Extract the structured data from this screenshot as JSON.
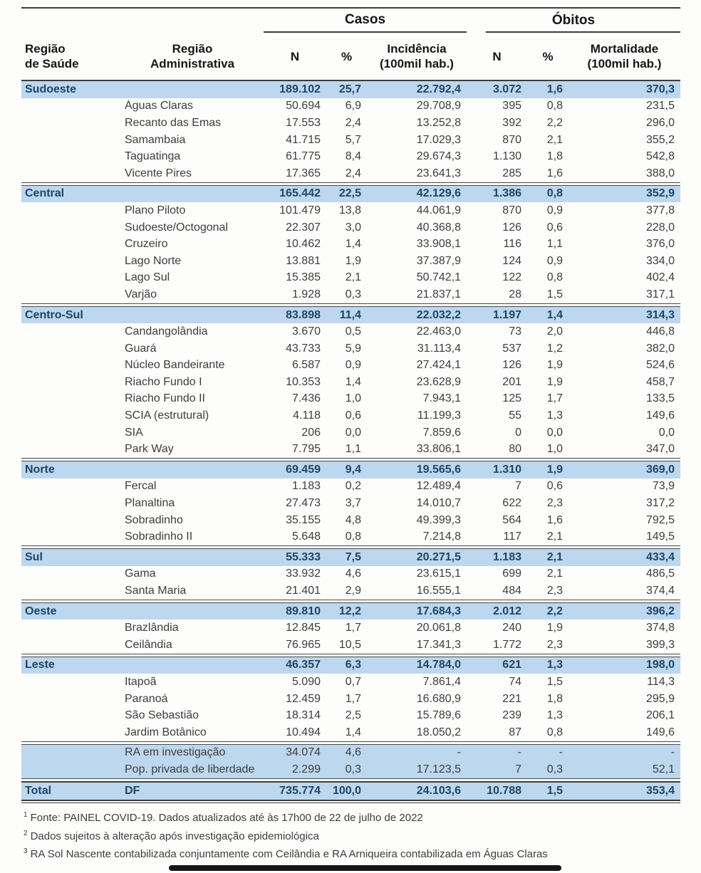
{
  "chart_data": {
    "type": "table",
    "header": {
      "casos": "Casos",
      "obitos": "Óbitos",
      "regiao_saude": "Região\nde Saúde",
      "regiao_administrativa": "Região\nAdministrativa",
      "casos_n": "N",
      "casos_pct": "%",
      "incidencia": "Incidência\n(100mil hab.)",
      "obitos_n": "N",
      "obitos_pct": "%",
      "mortalidade": "Mortalidade\n(100mil hab.)"
    },
    "value_columns": [
      "casos_n",
      "casos_pct",
      "incidencia_100mil",
      "obitos_n",
      "obitos_pct",
      "mortalidade_100mil"
    ],
    "groups": [
      {
        "region": "Sudoeste",
        "values": [
          "189.102",
          "25,7",
          "22.792,4",
          "3.072",
          "1,6",
          "370,3"
        ],
        "rows": [
          {
            "name": "Águas Claras",
            "values": [
              "50.694",
              "6,9",
              "29.708,9",
              "395",
              "0,8",
              "231,5"
            ]
          },
          {
            "name": "Recanto das Emas",
            "values": [
              "17.553",
              "2,4",
              "13.252,8",
              "392",
              "2,2",
              "296,0"
            ]
          },
          {
            "name": "Samambaia",
            "values": [
              "41.715",
              "5,7",
              "17.029,3",
              "870",
              "2,1",
              "355,2"
            ]
          },
          {
            "name": "Taguatinga",
            "values": [
              "61.775",
              "8,4",
              "29.674,3",
              "1.130",
              "1,8",
              "542,8"
            ]
          },
          {
            "name": "Vicente Pires",
            "values": [
              "17.365",
              "2,4",
              "23.641,3",
              "285",
              "1,6",
              "388,0"
            ]
          }
        ]
      },
      {
        "region": "Central",
        "values": [
          "165.442",
          "22,5",
          "42.129,6",
          "1.386",
          "0,8",
          "352,9"
        ],
        "rows": [
          {
            "name": "Plano Piloto",
            "values": [
              "101.479",
              "13,8",
              "44.061,9",
              "870",
              "0,9",
              "377,8"
            ]
          },
          {
            "name": "Sudoeste/Octogonal",
            "values": [
              "22.307",
              "3,0",
              "40.368,8",
              "126",
              "0,6",
              "228,0"
            ]
          },
          {
            "name": "Cruzeiro",
            "values": [
              "10.462",
              "1,4",
              "33.908,1",
              "116",
              "1,1",
              "376,0"
            ]
          },
          {
            "name": "Lago Norte",
            "values": [
              "13.881",
              "1,9",
              "37.387,9",
              "124",
              "0,9",
              "334,0"
            ]
          },
          {
            "name": "Lago Sul",
            "values": [
              "15.385",
              "2,1",
              "50.742,1",
              "122",
              "0,8",
              "402,4"
            ]
          },
          {
            "name": "Varjão",
            "values": [
              "1.928",
              "0,3",
              "21.837,1",
              "28",
              "1,5",
              "317,1"
            ]
          }
        ]
      },
      {
        "region": "Centro-Sul",
        "values": [
          "83.898",
          "11,4",
          "22.032,2",
          "1.197",
          "1,4",
          "314,3"
        ],
        "rows": [
          {
            "name": "Candangolândia",
            "values": [
              "3.670",
              "0,5",
              "22.463,0",
              "73",
              "2,0",
              "446,8"
            ]
          },
          {
            "name": "Guará",
            "values": [
              "43.733",
              "5,9",
              "31.113,4",
              "537",
              "1,2",
              "382,0"
            ]
          },
          {
            "name": "Núcleo Bandeirante",
            "values": [
              "6.587",
              "0,9",
              "27.424,1",
              "126",
              "1,9",
              "524,6"
            ]
          },
          {
            "name": "Riacho Fundo I",
            "values": [
              "10.353",
              "1,4",
              "23.628,9",
              "201",
              "1,9",
              "458,7"
            ]
          },
          {
            "name": "Riacho Fundo II",
            "values": [
              "7.436",
              "1,0",
              "7.943,1",
              "125",
              "1,7",
              "133,5"
            ]
          },
          {
            "name": "SCIA (estrutural)",
            "values": [
              "4.118",
              "0,6",
              "11.199,3",
              "55",
              "1,3",
              "149,6"
            ]
          },
          {
            "name": "SIA",
            "values": [
              "206",
              "0,0",
              "7.859,6",
              "0",
              "0,0",
              "0,0"
            ]
          },
          {
            "name": "Park Way",
            "values": [
              "7.795",
              "1,1",
              "33.806,1",
              "80",
              "1,0",
              "347,0"
            ]
          }
        ]
      },
      {
        "region": "Norte",
        "values": [
          "69.459",
          "9,4",
          "19.565,6",
          "1.310",
          "1,9",
          "369,0"
        ],
        "rows": [
          {
            "name": "Fercal",
            "values": [
              "1.183",
              "0,2",
              "12.489,4",
              "7",
              "0,6",
              "73,9"
            ]
          },
          {
            "name": "Planaltina",
            "values": [
              "27.473",
              "3,7",
              "14.010,7",
              "622",
              "2,3",
              "317,2"
            ]
          },
          {
            "name": "Sobradinho",
            "values": [
              "35.155",
              "4,8",
              "49.399,3",
              "564",
              "1,6",
              "792,5"
            ]
          },
          {
            "name": "Sobradinho II",
            "values": [
              "5.648",
              "0,8",
              "7.214,8",
              "117",
              "2,1",
              "149,5"
            ]
          }
        ]
      },
      {
        "region": "Sul",
        "values": [
          "55.333",
          "7,5",
          "20.271,5",
          "1.183",
          "2,1",
          "433,4"
        ],
        "rows": [
          {
            "name": "Gama",
            "values": [
              "33.932",
              "4,6",
              "23.615,1",
              "699",
              "2,1",
              "486,5"
            ]
          },
          {
            "name": "Santa Maria",
            "values": [
              "21.401",
              "2,9",
              "16.555,1",
              "484",
              "2,3",
              "374,4"
            ]
          }
        ]
      },
      {
        "region": "Oeste",
        "values": [
          "89.810",
          "12,2",
          "17.684,3",
          "2.012",
          "2,2",
          "396,2"
        ],
        "rows": [
          {
            "name": "Brazlândia",
            "values": [
              "12.845",
              "1,7",
              "20.061,8",
              "240",
              "1,9",
              "374,8"
            ]
          },
          {
            "name": "Ceilândia",
            "values": [
              "76.965",
              "10,5",
              "17.341,3",
              "1.772",
              "2,3",
              "399,3"
            ]
          }
        ]
      },
      {
        "region": "Leste",
        "values": [
          "46.357",
          "6,3",
          "14.784,0",
          "621",
          "1,3",
          "198,0"
        ],
        "rows": [
          {
            "name": "Itapoã",
            "values": [
              "5.090",
              "0,7",
              "7.861,4",
              "74",
              "1,5",
              "114,3"
            ]
          },
          {
            "name": "Paranoá",
            "values": [
              "12.459",
              "1,7",
              "16.680,9",
              "221",
              "1,8",
              "295,9"
            ]
          },
          {
            "name": "São Sebastião",
            "values": [
              "18.314",
              "2,5",
              "15.789,6",
              "239",
              "1,3",
              "206,1"
            ]
          },
          {
            "name": "Jardim Botânico",
            "values": [
              "10.494",
              "1,4",
              "18.050,2",
              "87",
              "0,8",
              "149,6"
            ]
          }
        ]
      }
    ],
    "extra_rows": [
      {
        "name": "RA em investigação",
        "values": [
          "34.074",
          "4,6",
          "-",
          "-",
          "-",
          "-"
        ]
      },
      {
        "name": "Pop. privada de liberdade",
        "values": [
          "2.299",
          "0,3",
          "17.123,5",
          "7",
          "0,3",
          "52,1"
        ]
      }
    ],
    "total": {
      "label": "Total",
      "name": "DF",
      "values": [
        "735.774",
        "100,0",
        "24.103,6",
        "10.788",
        "1,5",
        "353,4"
      ]
    },
    "footnotes": [
      {
        "sup": "1",
        "text": "Fonte: PAINEL COVID-19. Dados atualizados até às 17h00 de 22 de julho de 2022"
      },
      {
        "sup": "2",
        "text": "Dados sujeitos à alteração após investigação epidemiológica"
      },
      {
        "sup": "3",
        "text": "RA Sol Nascente contabilizada conjuntamente com Ceilândia e RA Arniqueira contabilizada em Águas Claras"
      }
    ],
    "colors": {
      "row_highlight": "#bdd7ee",
      "region_text": "#1f4565",
      "body_text": "#3d3d3d",
      "rule": "#3c3c3c"
    }
  }
}
